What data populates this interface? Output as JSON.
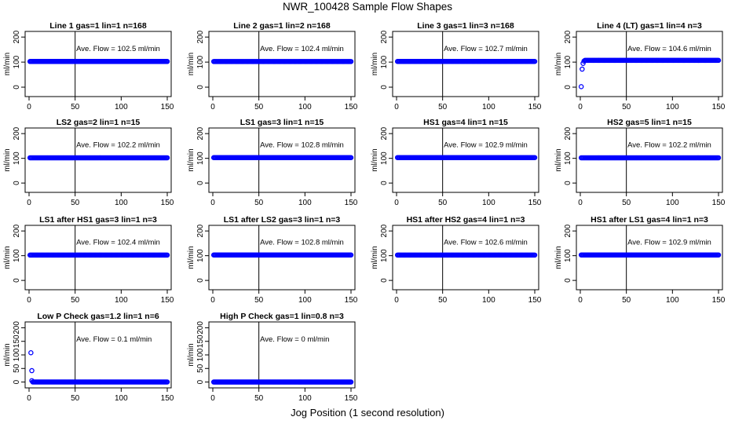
{
  "figure": {
    "title": "NWR_100428  Sample Flow Shapes",
    "xlabel": "Jog Position (1 second resolution)"
  },
  "chart_data": [
    {
      "type": "scatter",
      "title": "Line 1 gas=1 lin=1 n=168",
      "ylabel": "ml/min",
      "xlim": [
        0,
        150
      ],
      "ylim": [
        -25,
        210
      ],
      "xticks": [
        "0",
        "50",
        "100",
        "150"
      ],
      "yticks": [
        "0",
        "100",
        "200"
      ],
      "vline_x": 50,
      "annotation": "Ave. Flow =  102.5  ml/min",
      "series": [
        {
          "x_start": 1,
          "x_end": 150,
          "y": 102.5
        }
      ],
      "outliers": []
    },
    {
      "type": "scatter",
      "title": "Line 2 gas=1 lin=2 n=168",
      "ylabel": "ml/min",
      "xlim": [
        0,
        150
      ],
      "ylim": [
        -25,
        210
      ],
      "xticks": [
        "0",
        "50",
        "100",
        "150"
      ],
      "yticks": [
        "0",
        "100",
        "200"
      ],
      "vline_x": 50,
      "annotation": "Ave. Flow =  102.4  ml/min",
      "series": [
        {
          "x_start": 1,
          "x_end": 150,
          "y": 102.4
        }
      ],
      "outliers": []
    },
    {
      "type": "scatter",
      "title": "Line 3 gas=1 lin=3 n=168",
      "ylabel": "ml/min",
      "xlim": [
        0,
        150
      ],
      "ylim": [
        -25,
        210
      ],
      "xticks": [
        "0",
        "50",
        "100",
        "150"
      ],
      "yticks": [
        "0",
        "100",
        "200"
      ],
      "vline_x": 50,
      "annotation": "Ave. Flow =  102.7  ml/min",
      "series": [
        {
          "x_start": 1,
          "x_end": 150,
          "y": 102.7
        }
      ],
      "outliers": []
    },
    {
      "type": "scatter",
      "title": "Line 4 (LT) gas=1 lin=4 n=3",
      "ylabel": "ml/min",
      "xlim": [
        0,
        150
      ],
      "ylim": [
        -25,
        210
      ],
      "xticks": [
        "0",
        "50",
        "100",
        "150"
      ],
      "yticks": [
        "0",
        "100",
        "200"
      ],
      "vline_x": 50,
      "annotation": "Ave. Flow =  104.6  ml/min",
      "series": [
        {
          "x_start": 5,
          "x_end": 150,
          "y": 107
        }
      ],
      "outliers": [
        [
          1,
          2
        ],
        [
          2,
          72
        ],
        [
          3,
          95
        ],
        [
          4,
          104
        ]
      ]
    },
    {
      "type": "scatter",
      "title": "LS2 gas=2 lin=1 n=15",
      "ylabel": "ml/min",
      "xlim": [
        0,
        150
      ],
      "ylim": [
        -25,
        210
      ],
      "xticks": [
        "0",
        "50",
        "100",
        "150"
      ],
      "yticks": [
        "0",
        "100",
        "200"
      ],
      "vline_x": 50,
      "annotation": "Ave. Flow =  102.2  ml/min",
      "series": [
        {
          "x_start": 1,
          "x_end": 150,
          "y": 102.2
        }
      ],
      "outliers": []
    },
    {
      "type": "scatter",
      "title": "LS1 gas=3 lin=1 n=15",
      "ylabel": "ml/min",
      "xlim": [
        0,
        150
      ],
      "ylim": [
        -25,
        210
      ],
      "xticks": [
        "0",
        "50",
        "100",
        "150"
      ],
      "yticks": [
        "0",
        "100",
        "200"
      ],
      "vline_x": 50,
      "annotation": "Ave. Flow =  102.8  ml/min",
      "series": [
        {
          "x_start": 1,
          "x_end": 150,
          "y": 102.8
        }
      ],
      "outliers": []
    },
    {
      "type": "scatter",
      "title": "HS1 gas=4 lin=1 n=15",
      "ylabel": "ml/min",
      "xlim": [
        0,
        150
      ],
      "ylim": [
        -25,
        210
      ],
      "xticks": [
        "0",
        "50",
        "100",
        "150"
      ],
      "yticks": [
        "0",
        "100",
        "200"
      ],
      "vline_x": 50,
      "annotation": "Ave. Flow =  102.9  ml/min",
      "series": [
        {
          "x_start": 1,
          "x_end": 150,
          "y": 102.9
        }
      ],
      "outliers": []
    },
    {
      "type": "scatter",
      "title": "HS2 gas=5 lin=1 n=15",
      "ylabel": "ml/min",
      "xlim": [
        0,
        150
      ],
      "ylim": [
        -25,
        210
      ],
      "xticks": [
        "0",
        "50",
        "100",
        "150"
      ],
      "yticks": [
        "0",
        "100",
        "200"
      ],
      "vline_x": 50,
      "annotation": "Ave. Flow =  102.2  ml/min",
      "series": [
        {
          "x_start": 1,
          "x_end": 150,
          "y": 102.2
        }
      ],
      "outliers": []
    },
    {
      "type": "scatter",
      "title": "LS1 after HS1 gas=3 lin=1 n=3",
      "ylabel": "ml/min",
      "xlim": [
        0,
        150
      ],
      "ylim": [
        -25,
        210
      ],
      "xticks": [
        "0",
        "50",
        "100",
        "150"
      ],
      "yticks": [
        "0",
        "100",
        "200"
      ],
      "vline_x": 50,
      "annotation": "Ave. Flow =  102.4  ml/min",
      "series": [
        {
          "x_start": 1,
          "x_end": 150,
          "y": 102.4
        }
      ],
      "outliers": []
    },
    {
      "type": "scatter",
      "title": "LS1 after LS2 gas=3 lin=1 n=3",
      "ylabel": "ml/min",
      "xlim": [
        0,
        150
      ],
      "ylim": [
        -25,
        210
      ],
      "xticks": [
        "0",
        "50",
        "100",
        "150"
      ],
      "yticks": [
        "0",
        "100",
        "200"
      ],
      "vline_x": 50,
      "annotation": "Ave. Flow =  102.8  ml/min",
      "series": [
        {
          "x_start": 1,
          "x_end": 150,
          "y": 102.8
        }
      ],
      "outliers": []
    },
    {
      "type": "scatter",
      "title": "HS1 after HS2 gas=4 lin=1 n=3",
      "ylabel": "ml/min",
      "xlim": [
        0,
        150
      ],
      "ylim": [
        -25,
        210
      ],
      "xticks": [
        "0",
        "50",
        "100",
        "150"
      ],
      "yticks": [
        "0",
        "100",
        "200"
      ],
      "vline_x": 50,
      "annotation": "Ave. Flow =  102.6  ml/min",
      "series": [
        {
          "x_start": 1,
          "x_end": 150,
          "y": 102.6
        }
      ],
      "outliers": []
    },
    {
      "type": "scatter",
      "title": "HS1 after LS1 gas=4 lin=1 n=3",
      "ylabel": "ml/min",
      "xlim": [
        0,
        150
      ],
      "ylim": [
        -25,
        210
      ],
      "xticks": [
        "0",
        "50",
        "100",
        "150"
      ],
      "yticks": [
        "0",
        "100",
        "200"
      ],
      "vline_x": 50,
      "annotation": "Ave. Flow =  102.9  ml/min",
      "series": [
        {
          "x_start": 1,
          "x_end": 150,
          "y": 102.9
        }
      ],
      "outliers": []
    },
    {
      "type": "scatter",
      "title": "Low P Check gas=1.2 lin=1 n=6",
      "ylabel": "ml/min",
      "xlim": [
        0,
        150
      ],
      "ylim": [
        -10,
        210
      ],
      "xticks": [
        "0",
        "50",
        "100",
        "150"
      ],
      "yticks": [
        "0",
        "50",
        "100",
        "150",
        "200"
      ],
      "vline_x": 50,
      "annotation": "Ave. Flow =  0.1  ml/min",
      "series": [
        {
          "x_start": 4,
          "x_end": 150,
          "y": 0.1
        }
      ],
      "outliers": [
        [
          2,
          108
        ],
        [
          3,
          42
        ],
        [
          3,
          5
        ]
      ]
    },
    {
      "type": "scatter",
      "title": "High P Check gas=1 lin=0.8 n=3",
      "ylabel": "ml/min",
      "xlim": [
        0,
        150
      ],
      "ylim": [
        -10,
        210
      ],
      "xticks": [
        "0",
        "50",
        "100",
        "150"
      ],
      "yticks": [
        "0",
        "50",
        "100",
        "150",
        "200"
      ],
      "vline_x": 50,
      "annotation": "Ave. Flow =  0  ml/min",
      "series": [
        {
          "x_start": 1,
          "x_end": 150,
          "y": 0
        }
      ],
      "outliers": []
    }
  ],
  "colors": {
    "points": "#0000ff",
    "axis": "#000000",
    "background": "#ffffff"
  }
}
